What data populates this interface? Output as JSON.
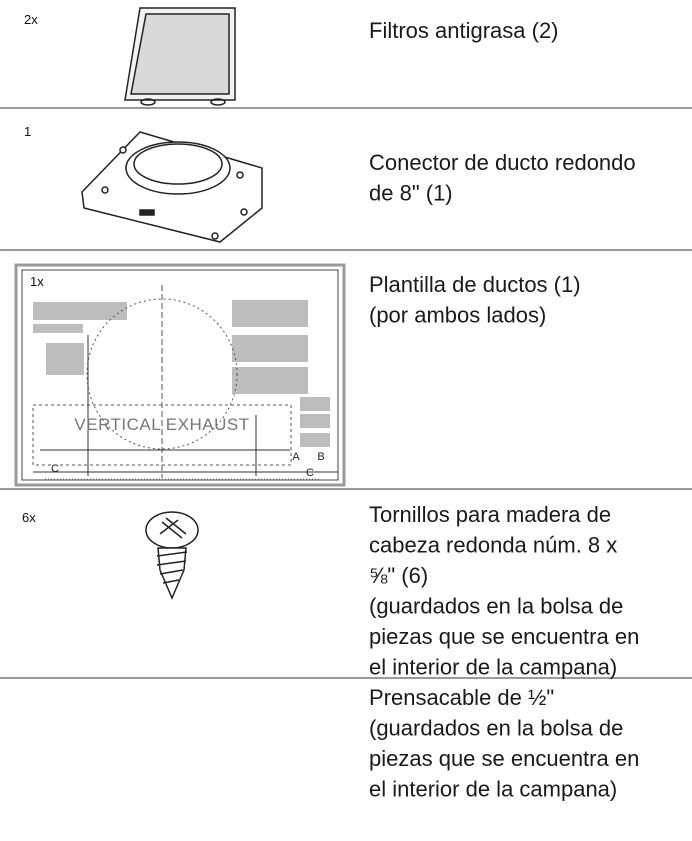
{
  "rows": [
    {
      "qty": "2x",
      "description": [
        "Filtros antigrasa (2)"
      ]
    },
    {
      "qty": "1",
      "description": [
        "Conector de ducto redondo",
        "de 8\" (1)"
      ]
    },
    {
      "qty": "1x",
      "description": [
        "Plantilla de ductos (1)",
        "(por ambos lados)"
      ],
      "template": {
        "title": "VERTICAL EXHAUST",
        "labels": [
          "C",
          "A",
          "B",
          "C"
        ]
      }
    },
    {
      "qty": "6x",
      "description": [
        "Tornillos para madera de",
        "cabeza redonda núm. 8 x",
        "⅝\" (6)",
        "(guardados en la bolsa de",
        "piezas que se encuentra en",
        "el interior de la campana)"
      ]
    },
    {
      "description": [
        "Prensacable de ½\"",
        "(guardados en la bolsa de",
        "piezas que se encuentra en",
        "el interior de la campana)"
      ]
    }
  ]
}
